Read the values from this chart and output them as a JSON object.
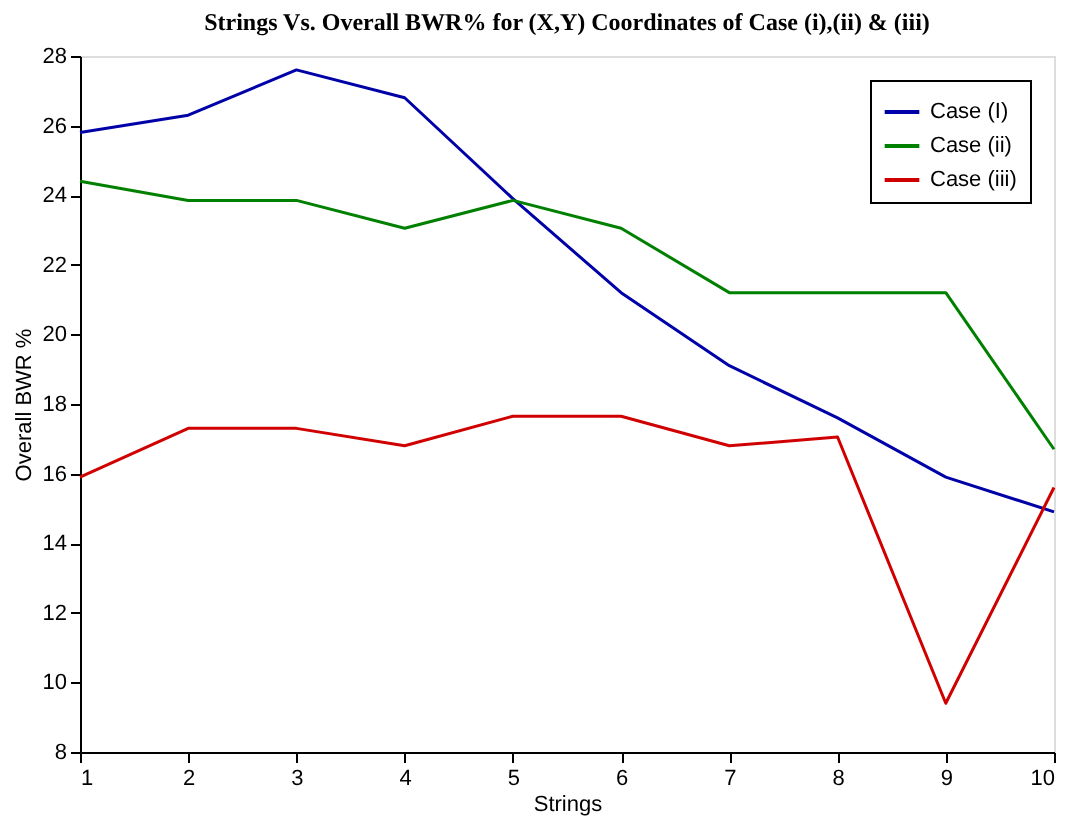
{
  "chart_data": {
    "type": "line",
    "title": "Strings Vs. Overall BWR% for (X,Y) Coordinates of Case (i),(ii) & (iii)",
    "xlabel": "Strings",
    "ylabel": "Overall BWR %",
    "x": [
      1,
      2,
      3,
      4,
      5,
      6,
      7,
      8,
      9,
      10
    ],
    "series": [
      {
        "name": "Case (I)",
        "color": "#0000a8",
        "values": [
          25.8,
          26.3,
          27.6,
          26.8,
          23.9,
          21.2,
          19.1,
          17.6,
          15.9,
          14.9
        ]
      },
      {
        "name": "Case (ii)",
        "color": "#008000",
        "values": [
          24.4,
          23.85,
          23.85,
          23.05,
          23.85,
          23.05,
          21.2,
          21.2,
          21.2,
          16.7
        ]
      },
      {
        "name": "Case (iii)",
        "color": "#d00000",
        "values": [
          15.9,
          17.3,
          17.3,
          16.8,
          17.65,
          17.65,
          16.8,
          17.05,
          9.4,
          15.6
        ]
      }
    ],
    "xlim": [
      1,
      10
    ],
    "xticks": [
      1,
      2,
      3,
      4,
      5,
      6,
      7,
      8,
      9,
      10
    ],
    "ylim": [
      8,
      28
    ],
    "yticks": [
      8,
      10,
      12,
      14,
      16,
      18,
      20,
      22,
      24,
      26,
      28
    ],
    "grid": false,
    "legend": "top right",
    "marker": "none",
    "line_style": "solid"
  }
}
